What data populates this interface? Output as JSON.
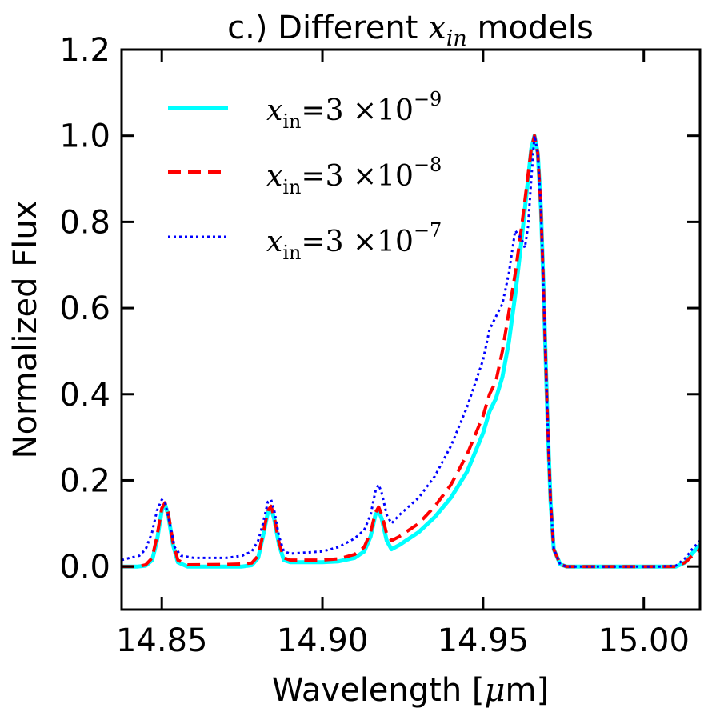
{
  "chart_data": {
    "type": "line",
    "title": {
      "prefix": "c.) Different ",
      "var": "x",
      "sub": "in",
      "suffix": " models"
    },
    "xlabel": {
      "prefix": "Wavelength [",
      "mu": "μ",
      "suffix": "m]"
    },
    "ylabel": "Normalized Flux",
    "xlim": [
      14.8375,
      15.0175
    ],
    "ylim": [
      -0.1,
      1.2
    ],
    "xticks": [
      14.85,
      14.9,
      14.95,
      15.0
    ],
    "xtick_labels": [
      "14.85",
      "14.90",
      "14.95",
      "15.00"
    ],
    "yticks": [
      0.0,
      0.2,
      0.4,
      0.6,
      0.8,
      1.0,
      1.2
    ],
    "ytick_labels": [
      "0.0",
      "0.2",
      "0.4",
      "0.6",
      "0.8",
      "1.0",
      "1.2"
    ],
    "legend_position": "top-left",
    "series": [
      {
        "name": "x_in = 3 ×10^-9",
        "label": {
          "var": "x",
          "sub": "in",
          "eq": "=3 ×10",
          "exp": "−9"
        },
        "color": "#00ffff",
        "style": "solid",
        "points": [
          [
            14.8375,
            0.0
          ],
          [
            14.8425,
            0.0
          ],
          [
            14.845,
            0.002
          ],
          [
            14.847,
            0.015
          ],
          [
            14.8485,
            0.06
          ],
          [
            14.85,
            0.13
          ],
          [
            14.851,
            0.145
          ],
          [
            14.852,
            0.12
          ],
          [
            14.8535,
            0.05
          ],
          [
            14.855,
            0.01
          ],
          [
            14.858,
            0.0
          ],
          [
            14.87,
            0.0
          ],
          [
            14.875,
            0.0
          ],
          [
            14.878,
            0.003
          ],
          [
            14.88,
            0.02
          ],
          [
            14.8815,
            0.07
          ],
          [
            14.883,
            0.125
          ],
          [
            14.884,
            0.135
          ],
          [
            14.885,
            0.11
          ],
          [
            14.8865,
            0.05
          ],
          [
            14.888,
            0.015
          ],
          [
            14.89,
            0.01
          ],
          [
            14.9,
            0.01
          ],
          [
            14.905,
            0.012
          ],
          [
            14.91,
            0.02
          ],
          [
            14.913,
            0.035
          ],
          [
            14.915,
            0.07
          ],
          [
            14.9165,
            0.12
          ],
          [
            14.9175,
            0.13
          ],
          [
            14.9185,
            0.11
          ],
          [
            14.92,
            0.06
          ],
          [
            14.9215,
            0.04
          ],
          [
            14.924,
            0.05
          ],
          [
            14.93,
            0.08
          ],
          [
            14.935,
            0.115
          ],
          [
            14.94,
            0.16
          ],
          [
            14.945,
            0.22
          ],
          [
            14.95,
            0.31
          ],
          [
            14.952,
            0.36
          ],
          [
            14.954,
            0.39
          ],
          [
            14.956,
            0.44
          ],
          [
            14.958,
            0.52
          ],
          [
            14.96,
            0.63
          ],
          [
            14.962,
            0.76
          ],
          [
            14.964,
            0.9
          ],
          [
            14.965,
            0.97
          ],
          [
            14.966,
            1.0
          ],
          [
            14.967,
            0.96
          ],
          [
            14.968,
            0.83
          ],
          [
            14.969,
            0.6
          ],
          [
            14.97,
            0.35
          ],
          [
            14.971,
            0.15
          ],
          [
            14.972,
            0.04
          ],
          [
            14.974,
            0.005
          ],
          [
            14.976,
            0.0
          ],
          [
            15.0,
            0.0
          ],
          [
            15.005,
            0.0
          ],
          [
            15.01,
            0.0
          ],
          [
            15.013,
            0.01
          ],
          [
            15.015,
            0.03
          ],
          [
            15.0175,
            0.05
          ]
        ]
      },
      {
        "name": "x_in = 3 ×10^-8",
        "label": {
          "var": "x",
          "sub": "in",
          "eq": "=3 ×10",
          "exp": "−8"
        },
        "color": "#ff0000",
        "style": "dashed",
        "points": [
          [
            14.8375,
            0.0
          ],
          [
            14.8425,
            0.0
          ],
          [
            14.845,
            0.004
          ],
          [
            14.847,
            0.02
          ],
          [
            14.8485,
            0.07
          ],
          [
            14.85,
            0.135
          ],
          [
            14.851,
            0.148
          ],
          [
            14.852,
            0.125
          ],
          [
            14.8535,
            0.055
          ],
          [
            14.855,
            0.015
          ],
          [
            14.858,
            0.004
          ],
          [
            14.87,
            0.005
          ],
          [
            14.875,
            0.006
          ],
          [
            14.878,
            0.008
          ],
          [
            14.88,
            0.025
          ],
          [
            14.8815,
            0.075
          ],
          [
            14.883,
            0.13
          ],
          [
            14.884,
            0.14
          ],
          [
            14.885,
            0.115
          ],
          [
            14.8865,
            0.055
          ],
          [
            14.888,
            0.02
          ],
          [
            14.89,
            0.015
          ],
          [
            14.9,
            0.015
          ],
          [
            14.905,
            0.018
          ],
          [
            14.91,
            0.028
          ],
          [
            14.913,
            0.045
          ],
          [
            14.915,
            0.08
          ],
          [
            14.9165,
            0.125
          ],
          [
            14.9175,
            0.138
          ],
          [
            14.9185,
            0.12
          ],
          [
            14.92,
            0.075
          ],
          [
            14.9215,
            0.06
          ],
          [
            14.924,
            0.07
          ],
          [
            14.93,
            0.1
          ],
          [
            14.935,
            0.14
          ],
          [
            14.94,
            0.19
          ],
          [
            14.945,
            0.26
          ],
          [
            14.95,
            0.35
          ],
          [
            14.952,
            0.4
          ],
          [
            14.954,
            0.43
          ],
          [
            14.956,
            0.5
          ],
          [
            14.958,
            0.59
          ],
          [
            14.96,
            0.68
          ],
          [
            14.962,
            0.79
          ],
          [
            14.964,
            0.91
          ],
          [
            14.965,
            0.97
          ],
          [
            14.966,
            1.0
          ],
          [
            14.967,
            0.96
          ],
          [
            14.968,
            0.83
          ],
          [
            14.969,
            0.6
          ],
          [
            14.97,
            0.35
          ],
          [
            14.971,
            0.15
          ],
          [
            14.972,
            0.04
          ],
          [
            14.974,
            0.005
          ],
          [
            14.976,
            0.0
          ],
          [
            15.0,
            0.0
          ],
          [
            15.005,
            0.0
          ],
          [
            15.01,
            0.0
          ],
          [
            15.013,
            0.01
          ],
          [
            15.015,
            0.025
          ],
          [
            15.0175,
            0.04
          ]
        ]
      },
      {
        "name": "x_in = 3 ×10^-7",
        "label": {
          "var": "x",
          "sub": "in",
          "eq": "=3 ×10",
          "exp": "−7"
        },
        "color": "#0000ff",
        "style": "dotted",
        "points": [
          [
            14.8375,
            0.015
          ],
          [
            14.84,
            0.02
          ],
          [
            14.843,
            0.025
          ],
          [
            14.845,
            0.04
          ],
          [
            14.847,
            0.08
          ],
          [
            14.8485,
            0.13
          ],
          [
            14.85,
            0.155
          ],
          [
            14.851,
            0.15
          ],
          [
            14.8525,
            0.1
          ],
          [
            14.854,
            0.045
          ],
          [
            14.856,
            0.025
          ],
          [
            14.86,
            0.02
          ],
          [
            14.87,
            0.02
          ],
          [
            14.875,
            0.025
          ],
          [
            14.878,
            0.035
          ],
          [
            14.88,
            0.06
          ],
          [
            14.8815,
            0.1
          ],
          [
            14.883,
            0.15
          ],
          [
            14.884,
            0.155
          ],
          [
            14.885,
            0.13
          ],
          [
            14.8865,
            0.07
          ],
          [
            14.888,
            0.035
          ],
          [
            14.89,
            0.03
          ],
          [
            14.9,
            0.035
          ],
          [
            14.905,
            0.045
          ],
          [
            14.91,
            0.065
          ],
          [
            14.913,
            0.085
          ],
          [
            14.915,
            0.12
          ],
          [
            14.9165,
            0.175
          ],
          [
            14.9175,
            0.19
          ],
          [
            14.9185,
            0.17
          ],
          [
            14.92,
            0.12
          ],
          [
            14.9215,
            0.1
          ],
          [
            14.924,
            0.12
          ],
          [
            14.93,
            0.16
          ],
          [
            14.935,
            0.21
          ],
          [
            14.94,
            0.28
          ],
          [
            14.945,
            0.37
          ],
          [
            14.95,
            0.48
          ],
          [
            14.952,
            0.55
          ],
          [
            14.954,
            0.58
          ],
          [
            14.956,
            0.61
          ],
          [
            14.958,
            0.68
          ],
          [
            14.96,
            0.78
          ],
          [
            14.962,
            0.76
          ],
          [
            14.963,
            0.74
          ],
          [
            14.964,
            0.79
          ],
          [
            14.965,
            0.9
          ],
          [
            14.966,
            1.0
          ],
          [
            14.967,
            0.96
          ],
          [
            14.968,
            0.83
          ],
          [
            14.969,
            0.6
          ],
          [
            14.97,
            0.35
          ],
          [
            14.971,
            0.15
          ],
          [
            14.972,
            0.04
          ],
          [
            14.974,
            0.005
          ],
          [
            14.976,
            0.0
          ],
          [
            15.0,
            0.0
          ],
          [
            15.005,
            0.0
          ],
          [
            15.01,
            0.002
          ],
          [
            15.013,
            0.02
          ],
          [
            15.015,
            0.04
          ],
          [
            15.0175,
            0.06
          ]
        ]
      }
    ]
  }
}
